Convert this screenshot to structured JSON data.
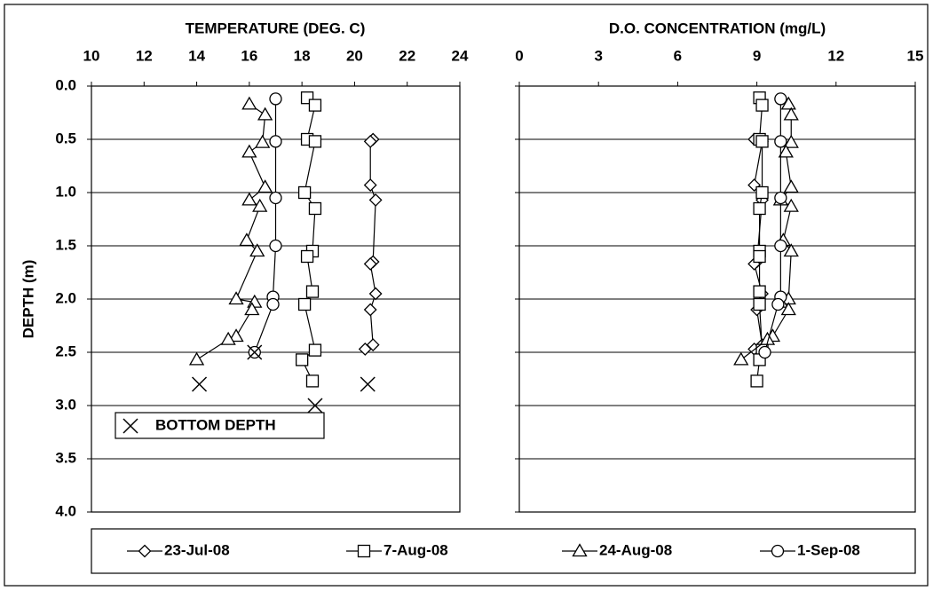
{
  "chart_data": {
    "type": "depth-profile",
    "y_axis_label": "DEPTH (m)",
    "ylim": [
      0,
      4
    ],
    "yticks": [
      {
        "value": 0,
        "label": "0.0"
      },
      {
        "value": 0.5,
        "label": "0.5"
      },
      {
        "value": 1,
        "label": "1.0"
      },
      {
        "value": 1.5,
        "label": "1.5"
      },
      {
        "value": 2,
        "label": "2.0"
      },
      {
        "value": 2.5,
        "label": "2.5"
      },
      {
        "value": 3,
        "label": "3.0"
      },
      {
        "value": 3.5,
        "label": "3.5"
      },
      {
        "value": 4,
        "label": "4.0"
      }
    ],
    "y_inverted": true,
    "grid": true,
    "temperature_title": "TEMPERATURE (DEG. C)",
    "temperature_lim": [
      10,
      24
    ],
    "temperature_ticks": [
      10,
      12,
      14,
      16,
      18,
      20,
      22,
      24
    ],
    "do_title": "D.O. CONCENTRATION (mg/L)",
    "do_lim": [
      0,
      15
    ],
    "do_ticks": [
      0,
      3,
      6,
      9,
      12,
      15
    ],
    "series": [
      {
        "name": "23-Jul-08",
        "color": "#000000",
        "marker": "diamond",
        "depth": [
          0.5,
          0.52,
          0.93,
          1.07,
          1.65,
          1.67,
          1.95,
          2.1,
          2.43,
          2.47
        ],
        "temperature": [
          20.7,
          20.6,
          20.6,
          20.8,
          20.7,
          20.6,
          20.8,
          20.6,
          20.7,
          20.4
        ],
        "do": [
          8.9,
          9.2,
          8.9,
          9.2,
          9.0,
          8.9,
          9.2,
          9.0,
          9.2,
          8.9
        ]
      },
      {
        "name": "7-Aug-08",
        "color": "#000000",
        "marker": "square",
        "depth": [
          0.11,
          0.18,
          0.5,
          0.52,
          1.0,
          1.15,
          1.55,
          1.6,
          1.93,
          2.05,
          2.48,
          2.57,
          2.77
        ],
        "temperature": [
          18.2,
          18.5,
          18.2,
          18.5,
          18.1,
          18.5,
          18.4,
          18.2,
          18.4,
          18.1,
          18.5,
          18.0,
          18.4
        ],
        "do": [
          9.1,
          9.2,
          9.1,
          9.2,
          9.2,
          9.1,
          9.1,
          9.1,
          9.1,
          9.1,
          9.2,
          9.1,
          9.0
        ]
      },
      {
        "name": "24-Aug-08",
        "color": "#000000",
        "marker": "triangle",
        "depth": [
          0.17,
          0.27,
          0.53,
          0.62,
          0.95,
          1.07,
          1.13,
          1.45,
          1.55,
          2.0,
          2.03,
          2.1,
          2.35,
          2.38,
          2.57
        ],
        "temperature": [
          16.0,
          16.6,
          16.5,
          16.0,
          16.6,
          16.0,
          16.4,
          15.9,
          16.3,
          15.5,
          16.2,
          16.1,
          15.5,
          15.2,
          14.0
        ],
        "do": [
          10.2,
          10.3,
          10.3,
          10.1,
          10.3,
          9.9,
          10.3,
          10.0,
          10.3,
          10.2,
          9.9,
          10.2,
          9.6,
          9.4,
          8.4
        ]
      },
      {
        "name": "1-Sep-08",
        "color": "#000000",
        "marker": "circle",
        "depth": [
          0.12,
          0.52,
          1.05,
          1.5,
          1.98,
          2.05,
          2.5
        ],
        "temperature": [
          17.0,
          17.0,
          17.0,
          17.0,
          16.9,
          16.9,
          16.2
        ],
        "do": [
          9.9,
          9.9,
          9.9,
          9.9,
          9.9,
          9.8,
          9.3
        ]
      }
    ],
    "bottom_depth": {
      "label": "BOTTOM DEPTH",
      "temperature": [
        20.5,
        18.5,
        14.1,
        16.2
      ],
      "depth": [
        2.8,
        3.0,
        2.8,
        2.5
      ]
    }
  }
}
